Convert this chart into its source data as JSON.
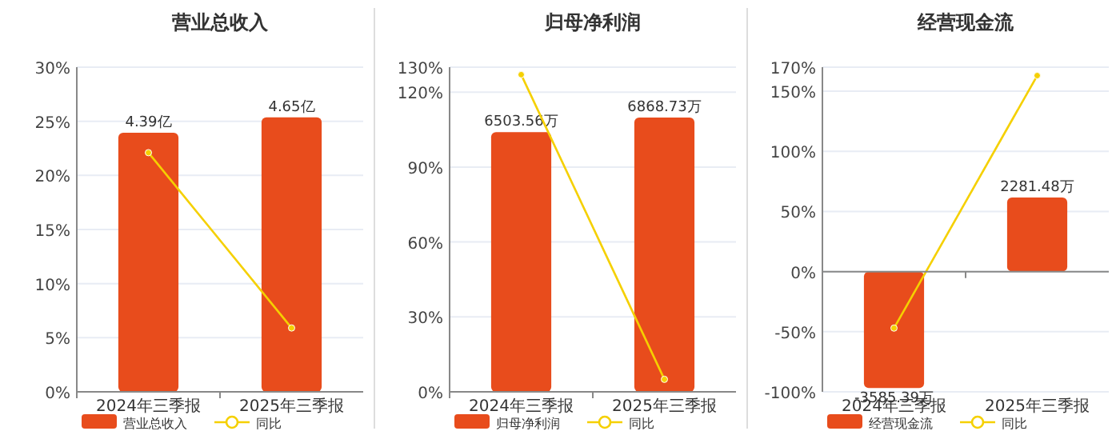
{
  "chart_data": [
    {
      "type": "bar",
      "title": "营业总收入",
      "categories": [
        "2024年三季报",
        "2025年三季报"
      ],
      "series": [
        {
          "name": "营业总收入",
          "axis": "y2",
          "color": "#e84c1c",
          "values": [
            4.39,
            4.65
          ],
          "value_labels": [
            "4.39亿",
            "4.65亿"
          ]
        },
        {
          "name": "同比",
          "type": "line",
          "color": "#f5d000",
          "values": [
            22.1,
            5.9
          ]
        }
      ],
      "ylim": [
        0,
        30
      ],
      "yticks": [
        {
          "value": 0,
          "label": "0%"
        },
        {
          "value": 5,
          "label": "5%"
        },
        {
          "value": 10,
          "label": "10%"
        },
        {
          "value": 15,
          "label": "15%"
        },
        {
          "value": 20,
          "label": "20%"
        },
        {
          "value": 25,
          "label": "25%"
        },
        {
          "value": 30,
          "label": "30%"
        }
      ],
      "y2lim": [
        0,
        5.5
      ],
      "grid": "y",
      "legend": "bottom",
      "marker": "circle"
    },
    {
      "type": "bar",
      "title": "归母净利润",
      "categories": [
        "2024年三季报",
        "2025年三季报"
      ],
      "series": [
        {
          "name": "归母净利润",
          "axis": "y2",
          "color": "#e84c1c",
          "values": [
            6503.56,
            6868.73
          ],
          "value_labels": [
            "6503.56万",
            "6868.73万"
          ]
        },
        {
          "name": "同比",
          "type": "line",
          "color": "#f5d000",
          "values": [
            127,
            5
          ]
        }
      ],
      "ylim": [
        0,
        130
      ],
      "yticks": [
        {
          "value": 0,
          "label": "0%"
        },
        {
          "value": 30,
          "label": "30%"
        },
        {
          "value": 60,
          "label": "60%"
        },
        {
          "value": 90,
          "label": "90%"
        },
        {
          "value": 120,
          "label": "120%"
        },
        {
          "value": 130,
          "label": "130%"
        }
      ],
      "y2lim": [
        0,
        8130
      ],
      "grid": "y",
      "legend": "bottom",
      "marker": "circle"
    },
    {
      "type": "bar",
      "title": "经营现金流",
      "categories": [
        "2024年三季报",
        "2025年三季报"
      ],
      "series": [
        {
          "name": "经营现金流",
          "axis": "y2",
          "color": "#e84c1c",
          "values": [
            -3585.39,
            2281.48
          ],
          "value_labels": [
            "-3585.39万",
            "2281.48万"
          ]
        },
        {
          "name": "同比",
          "type": "line",
          "color": "#f5d000",
          "values": [
            -47,
            163
          ]
        }
      ],
      "ylim": [
        -100,
        170
      ],
      "yticks": [
        {
          "value": -100,
          "label": "-100%"
        },
        {
          "value": -50,
          "label": "-50%"
        },
        {
          "value": 0,
          "label": "0%"
        },
        {
          "value": 50,
          "label": "50%"
        },
        {
          "value": 100,
          "label": "100%"
        },
        {
          "value": 150,
          "label": "150%"
        },
        {
          "value": 170,
          "label": "170%"
        }
      ],
      "y2lim": [
        -3700,
        6290
      ],
      "grid": "y",
      "legend": "bottom",
      "marker": "circle"
    }
  ]
}
